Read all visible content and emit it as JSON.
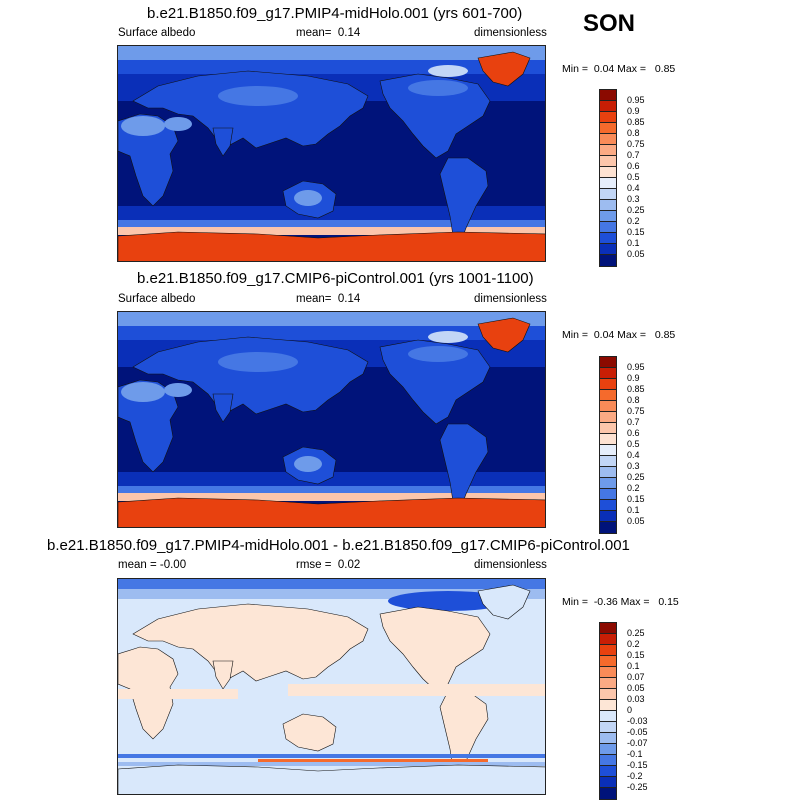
{
  "season": "SON",
  "panels": [
    {
      "title": "b.e21.B1850.f09_g17.PMIP4-midHolo.001 (yrs 601-700)",
      "left_label": "Surface albedo",
      "mean_label": "mean=",
      "mean_value": "0.14",
      "units": "dimensionless",
      "min_label": "Min =",
      "min_value": "0.04",
      "max_label": "Max =",
      "max_value": "0.85",
      "type": "absolute"
    },
    {
      "title": "b.e21.B1850.f09_g17.CMIP6-piControl.001 (yrs 1001-1100)",
      "left_label": "Surface albedo",
      "mean_label": "mean=",
      "mean_value": "0.14",
      "units": "dimensionless",
      "min_label": "Min =",
      "min_value": "0.04",
      "max_label": "Max =",
      "max_value": "0.85",
      "type": "absolute"
    },
    {
      "title": "b.e21.B1850.f09_g17.PMIP4-midHolo.001 - b.e21.B1850.f09_g17.CMIP6-piControl.001",
      "left_label": "mean =  -0.00",
      "mean_label": "rmse =",
      "mean_value": "0.02",
      "units": "dimensionless",
      "min_label": "Min =",
      "min_value": "-0.36",
      "max_label": "Max =",
      "max_value": "0.15",
      "type": "difference"
    }
  ],
  "colorbars": {
    "absolute": {
      "labels": [
        "0.95",
        "0.9",
        "0.85",
        "0.8",
        "0.75",
        "0.7",
        "0.6",
        "0.5",
        "0.4",
        "0.3",
        "0.25",
        "0.2",
        "0.15",
        "0.1",
        "0.05"
      ],
      "colors": [
        "#8b0a00",
        "#c81e05",
        "#e8410f",
        "#f56a2c",
        "#f98b58",
        "#fbaa84",
        "#fcc6ab",
        "#fde2d2",
        "#e6eefb",
        "#c2d6f6",
        "#9dbcf0",
        "#6e9bea",
        "#4577e4",
        "#1e4fd8",
        "#0a2fb8",
        "#00137a"
      ]
    },
    "difference": {
      "labels": [
        "0.25",
        "0.2",
        "0.15",
        "0.1",
        "0.07",
        "0.05",
        "0.03",
        "0",
        "-0.03",
        "-0.05",
        "-0.07",
        "-0.1",
        "-0.15",
        "-0.2",
        "-0.25"
      ],
      "colors": [
        "#8b0a00",
        "#c81e05",
        "#e8410f",
        "#f56a2c",
        "#f98b58",
        "#fbaa84",
        "#fcc6ab",
        "#fde6d6",
        "#d9e8fb",
        "#c2d6f6",
        "#9dbcf0",
        "#6e9bea",
        "#4577e4",
        "#1e4fd8",
        "#0a2fb8",
        "#00137a"
      ]
    }
  }
}
